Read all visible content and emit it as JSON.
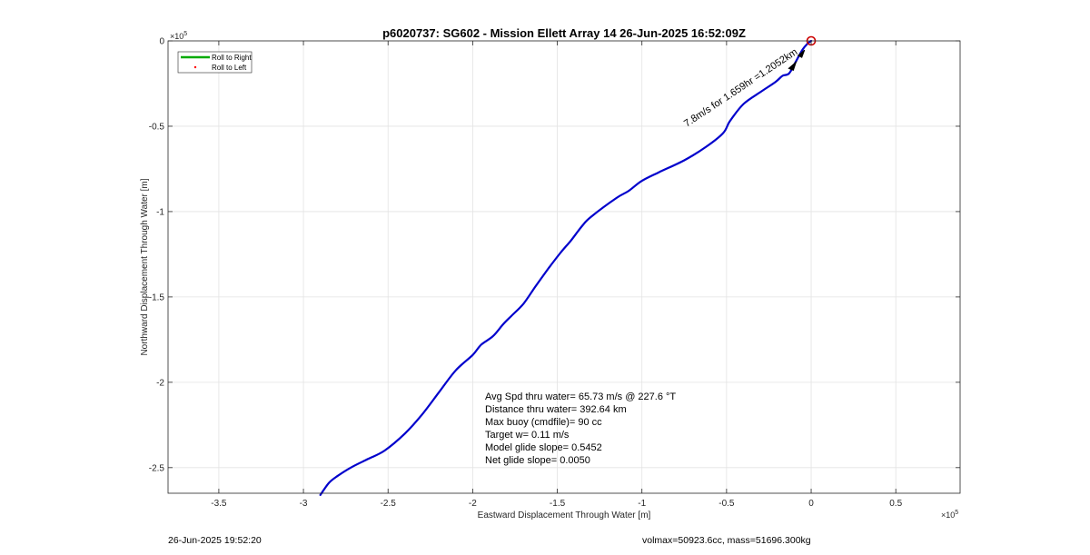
{
  "chart_data": {
    "type": "line",
    "title": "p6020737: SG602 - Mission Ellett Array 14 26-Jun-2025 16:52:09Z",
    "xlabel": "Eastward Displacement Through Water [m]",
    "ylabel": "Northward Displacement Through Water [m]",
    "x_exponent_label": "× 10^5",
    "y_exponent_label": "× 10^5",
    "xlim": [
      -380000,
      88000
    ],
    "ylim": [
      -265000,
      0
    ],
    "x_ticks": [
      -350000,
      -300000,
      -250000,
      -200000,
      -150000,
      -100000,
      -50000,
      0,
      50000
    ],
    "x_tick_labels": [
      "-3.5",
      "-3",
      "-2.5",
      "-2",
      "-1.5",
      "-1",
      "-0.5",
      "0",
      "0.5"
    ],
    "y_ticks": [
      0,
      -50000,
      -100000,
      -150000,
      -200000,
      -250000
    ],
    "y_tick_labels": [
      "0",
      "-0.5",
      "-1",
      "-1.5",
      "-2",
      "-2.5"
    ],
    "grid": true,
    "legend": {
      "placement": "top-left",
      "entries": [
        {
          "name": "Roll to Right",
          "color": "#00aa00",
          "marker": "line"
        },
        {
          "name": "Roll to Left",
          "color": "#ff0000",
          "marker": "dot"
        }
      ]
    },
    "series": [
      {
        "color": "#0000cc",
        "x": [
          0,
          -2000,
          -5000,
          -9000,
          -13000,
          -17000,
          -21000,
          -30000,
          -40000,
          -48000,
          -52000,
          -62000,
          -75000,
          -90000,
          -100000,
          -108000,
          -115000,
          -130000,
          -135000,
          -142000,
          -148000,
          -155000,
          -163000,
          -170000,
          -177000,
          -182000,
          -188000,
          -195000,
          -200000,
          -210000,
          -220000,
          -230000,
          -240000,
          -252000,
          -262000,
          -272000,
          -280000,
          -285000,
          -290000
        ],
        "y": [
          0,
          -1500,
          -5000,
          -12000,
          -19000,
          -20500,
          -24000,
          -30000,
          -37000,
          -47000,
          -54000,
          -62000,
          -70000,
          -77000,
          -82000,
          -88000,
          -92000,
          -103000,
          -108000,
          -117000,
          -124000,
          -133000,
          -144000,
          -154000,
          -161000,
          -166000,
          -173000,
          -178000,
          -184000,
          -193000,
          -206000,
          -219000,
          -230000,
          -240000,
          -245000,
          -250000,
          -255000,
          -259000,
          -266000
        ]
      }
    ],
    "current_position": {
      "x": 0,
      "y": 0,
      "color": "#cc0000"
    },
    "annotations": {
      "path_label": "7.8m/s for 1.659hr =1.2052km",
      "stats": [
        "Avg Spd thru water= 65.73 m/s @ 227.6 °T",
        "Distance thru water= 392.64 km",
        "Max buoy (cmdfile)= 90 cc",
        "Target w= 0.11 m/s",
        "Model glide slope= 0.5452",
        "Net glide slope= 0.0050"
      ]
    }
  },
  "footer": {
    "timestamp": "26-Jun-2025 19:52:20",
    "mass_info": "volmax=50923.6cc, mass=51696.300kg"
  }
}
